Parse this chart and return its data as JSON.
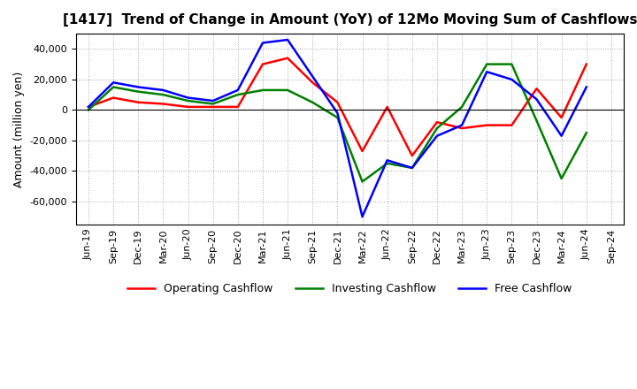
{
  "title": "[1417]  Trend of Change in Amount (YoY) of 12Mo Moving Sum of Cashflows",
  "ylabel": "Amount (million yen)",
  "x_labels": [
    "Jun-19",
    "Sep-19",
    "Dec-19",
    "Mar-20",
    "Jun-20",
    "Sep-20",
    "Dec-20",
    "Mar-21",
    "Jun-21",
    "Sep-21",
    "Dec-21",
    "Mar-22",
    "Jun-22",
    "Sep-22",
    "Dec-22",
    "Mar-23",
    "Jun-23",
    "Sep-23",
    "Dec-23",
    "Mar-24",
    "Jun-24",
    "Sep-24"
  ],
  "operating": [
    2000,
    8000,
    5000,
    4000,
    2000,
    2000,
    2000,
    30000,
    34000,
    18000,
    5000,
    -27000,
    2000,
    -30000,
    -8000,
    -12000,
    -10000,
    -10000,
    14000,
    -5000,
    30000,
    null
  ],
  "investing": [
    0,
    15000,
    12000,
    10000,
    6000,
    4000,
    10000,
    13000,
    13000,
    5000,
    -5000,
    -47000,
    -35000,
    -38000,
    -12000,
    2000,
    30000,
    30000,
    -7000,
    -45000,
    -15000,
    null
  ],
  "free": [
    2000,
    18000,
    15000,
    13000,
    8000,
    6000,
    13000,
    44000,
    46000,
    22000,
    -2000,
    -70000,
    -33000,
    -38000,
    -17000,
    -10000,
    25000,
    20000,
    7000,
    -17000,
    15000,
    null
  ],
  "operating_color": "#ff0000",
  "investing_color": "#008000",
  "free_color": "#0000ff",
  "ylim": [
    -75000,
    50000
  ],
  "yticks": [
    -60000,
    -40000,
    -20000,
    0,
    20000,
    40000
  ],
  "title_fontsize": 11,
  "axis_fontsize": 9,
  "tick_fontsize": 8,
  "legend_fontsize": 9,
  "linewidth": 1.8
}
